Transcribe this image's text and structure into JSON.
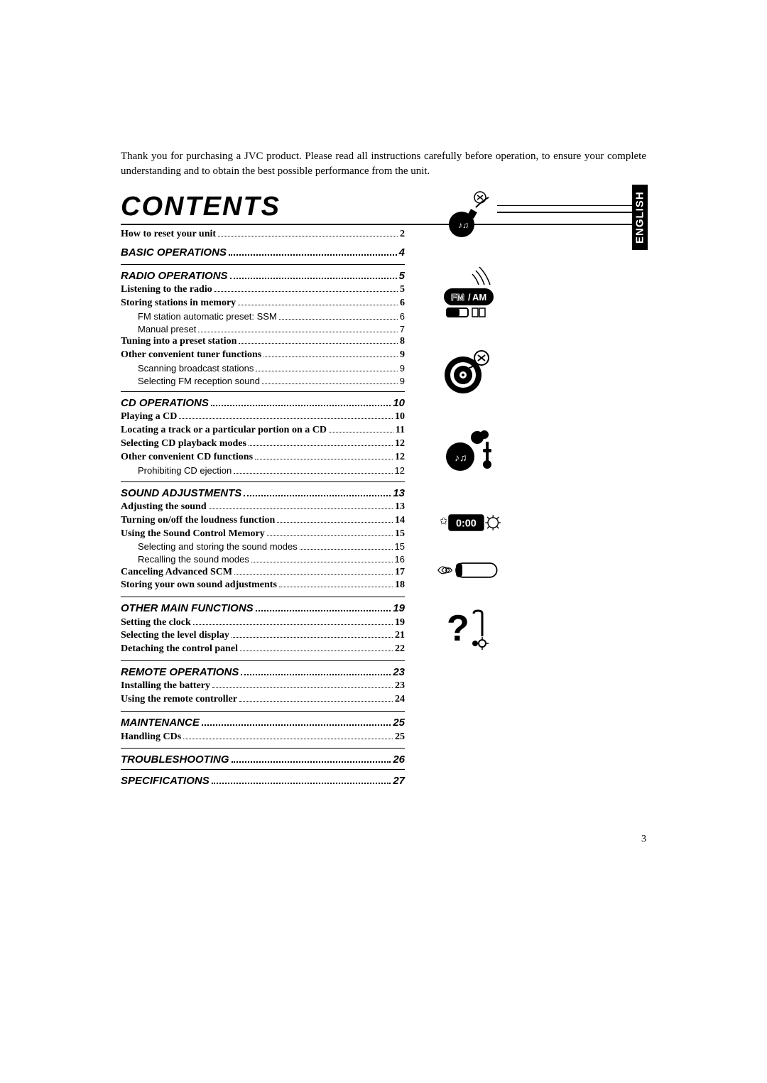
{
  "intro": "Thank you for purchasing a JVC product. Please read all instructions carefully before operation, to ensure your complete understanding and to obtain the best possible performance from the unit.",
  "title": "CONTENTS",
  "language_tab": "ENGLISH",
  "page_number": "3",
  "toc": {
    "first": {
      "label": "How to reset your unit",
      "page": "2"
    },
    "basic": {
      "label": "BASIC OPERATIONS",
      "page": "4"
    },
    "radio": {
      "label": "RADIO OPERATIONS",
      "page": "5",
      "items": [
        {
          "label": "Listening to the radio",
          "page": "5",
          "bold": true
        },
        {
          "label": "Storing stations in memory",
          "page": "6",
          "bold": true
        },
        {
          "label": "FM station automatic preset: SSM",
          "page": "6",
          "sub": true
        },
        {
          "label": "Manual preset",
          "page": "7",
          "sub": true
        },
        {
          "label": "Tuning into a preset station",
          "page": "8",
          "bold": true
        },
        {
          "label": "Other convenient tuner functions",
          "page": "9",
          "bold": true
        },
        {
          "label": "Scanning broadcast stations",
          "page": "9",
          "sub": true
        },
        {
          "label": "Selecting FM reception sound",
          "page": "9",
          "sub": true
        }
      ]
    },
    "cd": {
      "label": "CD OPERATIONS",
      "page": "10",
      "items": [
        {
          "label": "Playing a CD",
          "page": "10",
          "bold": true
        },
        {
          "label": "Locating a track or a particular portion on a CD",
          "page": "11",
          "bold": true
        },
        {
          "label": "Selecting CD playback modes",
          "page": "12",
          "bold": true
        },
        {
          "label": "Other convenient CD functions",
          "page": "12",
          "bold": true
        },
        {
          "label": "Prohibiting CD ejection",
          "page": "12",
          "sub": true
        }
      ]
    },
    "sound": {
      "label": "SOUND ADJUSTMENTS",
      "page": "13",
      "items": [
        {
          "label": "Adjusting the sound",
          "page": "13",
          "bold": true
        },
        {
          "label": "Turning on/off the loudness function",
          "page": "14",
          "bold": true
        },
        {
          "label": "Using the Sound Control Memory",
          "page": "15",
          "bold": true
        },
        {
          "label": "Selecting and storing the sound modes",
          "page": "15",
          "sub": true
        },
        {
          "label": "Recalling the sound modes",
          "page": "16",
          "sub": true
        },
        {
          "label": "Canceling Advanced SCM",
          "page": "17",
          "bold": true
        },
        {
          "label": "Storing your own sound adjustments",
          "page": "18",
          "bold": true
        }
      ]
    },
    "other": {
      "label": "OTHER MAIN FUNCTIONS",
      "page": "19",
      "items": [
        {
          "label": "Setting the clock",
          "page": "19",
          "bold": true
        },
        {
          "label": "Selecting the level display",
          "page": "21",
          "bold": true
        },
        {
          "label": "Detaching the control panel",
          "page": "22",
          "bold": true
        }
      ]
    },
    "remote": {
      "label": "REMOTE OPERATIONS",
      "page": "23",
      "items": [
        {
          "label": "Installing the battery",
          "page": "23",
          "bold": true
        },
        {
          "label": "Using the remote controller",
          "page": "24",
          "bold": true
        }
      ]
    },
    "maint": {
      "label": "MAINTENANCE",
      "page": "25",
      "items": [
        {
          "label": "Handling CDs",
          "page": "25",
          "bold": true
        }
      ]
    },
    "trouble": {
      "label": "TROUBLESHOOTING",
      "page": "26"
    },
    "spec": {
      "label": "SPECIFICATIONS",
      "page": "27"
    }
  },
  "radio_badge": {
    "fm": "FM",
    "am": "AM"
  },
  "clock_display": "0:00"
}
